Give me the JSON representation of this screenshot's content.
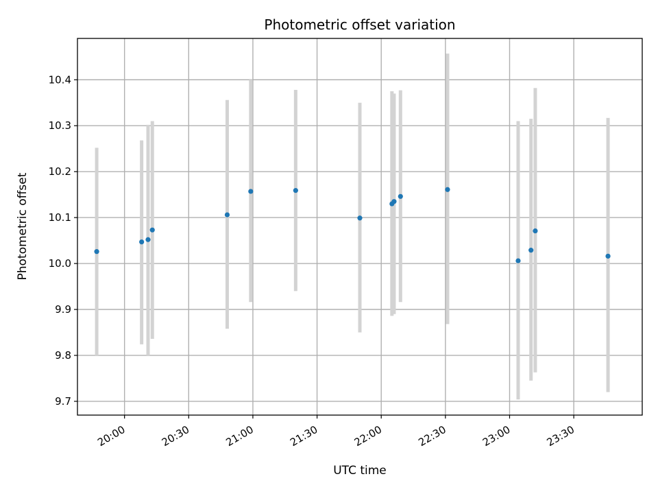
{
  "chart_data": {
    "type": "scatter",
    "title": "Photometric offset variation",
    "xlabel": "UTC time",
    "ylabel": "Photometric offset",
    "x_axis": {
      "kind": "time",
      "range": [
        "19:38",
        "24:02"
      ],
      "ticks": [
        "20:00",
        "20:30",
        "21:00",
        "21:30",
        "22:00",
        "22:30",
        "23:00",
        "23:30"
      ]
    },
    "y_axis": {
      "range": [
        9.67,
        10.49
      ],
      "ticks": [
        9.7,
        9.8,
        9.9,
        10.0,
        10.1,
        10.2,
        10.3,
        10.4
      ],
      "tick_labels": [
        "9.7",
        "9.8",
        "9.9",
        "10.0",
        "10.1",
        "10.2",
        "10.3",
        "10.4"
      ]
    },
    "grid": true,
    "point_color": "#1f77b4",
    "errorbar_color": "#d3d3d3",
    "points": [
      {
        "t": "19:47",
        "y": 10.026,
        "ylow": 9.8,
        "yhigh": 10.252
      },
      {
        "t": "20:08",
        "y": 10.047,
        "ylow": 9.824,
        "yhigh": 10.268
      },
      {
        "t": "20:11",
        "y": 10.052,
        "ylow": 9.8,
        "yhigh": 10.302
      },
      {
        "t": "20:13",
        "y": 10.073,
        "ylow": 9.836,
        "yhigh": 10.31
      },
      {
        "t": "20:48",
        "y": 10.106,
        "ylow": 9.858,
        "yhigh": 10.356
      },
      {
        "t": "20:59",
        "y": 10.157,
        "ylow": 9.916,
        "yhigh": 10.4
      },
      {
        "t": "21:20",
        "y": 10.159,
        "ylow": 9.94,
        "yhigh": 10.378
      },
      {
        "t": "21:50",
        "y": 10.099,
        "ylow": 9.85,
        "yhigh": 10.35
      },
      {
        "t": "22:05",
        "y": 10.13,
        "ylow": 9.886,
        "yhigh": 10.375
      },
      {
        "t": "22:06",
        "y": 10.135,
        "ylow": 9.89,
        "yhigh": 10.37
      },
      {
        "t": "22:09",
        "y": 10.146,
        "ylow": 9.916,
        "yhigh": 10.377
      },
      {
        "t": "22:31",
        "y": 10.161,
        "ylow": 9.868,
        "yhigh": 10.457
      },
      {
        "t": "23:04",
        "y": 10.006,
        "ylow": 9.704,
        "yhigh": 10.31
      },
      {
        "t": "23:10",
        "y": 10.029,
        "ylow": 9.745,
        "yhigh": 10.315
      },
      {
        "t": "23:12",
        "y": 10.071,
        "ylow": 9.763,
        "yhigh": 10.382
      },
      {
        "t": "23:46",
        "y": 10.016,
        "ylow": 9.72,
        "yhigh": 10.317
      }
    ]
  }
}
